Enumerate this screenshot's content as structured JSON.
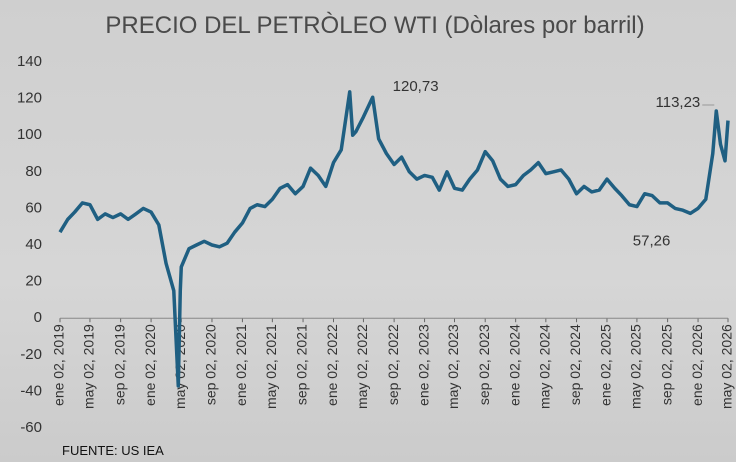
{
  "chart_data": {
    "type": "line",
    "title": "PRECIO  DEL PETRÒLEO WTI (Dòlares por barril)",
    "source": "FUENTE: US IEA",
    "ylim": [
      -60,
      140
    ],
    "yticks": [
      -60,
      -40,
      -20,
      0,
      20,
      40,
      60,
      80,
      100,
      120,
      140
    ],
    "xlim": [
      "2019-01-02",
      "2026-05-02"
    ],
    "xticks": [
      {
        "value": "2019-01-02",
        "label": "ene 02, 2019"
      },
      {
        "value": "2019-05-02",
        "label": "may 02, 2019"
      },
      {
        "value": "2019-09-02",
        "label": "sep 02, 2019"
      },
      {
        "value": "2020-01-02",
        "label": "ene 02, 2020"
      },
      {
        "value": "2020-05-02",
        "label": "may 02, 2020"
      },
      {
        "value": "2020-09-02",
        "label": "sep 02, 2020"
      },
      {
        "value": "2021-01-02",
        "label": "ene 02, 2021"
      },
      {
        "value": "2021-05-02",
        "label": "may 02, 2021"
      },
      {
        "value": "2021-09-02",
        "label": "sep 02, 2021"
      },
      {
        "value": "2022-01-02",
        "label": "ene 02, 2022"
      },
      {
        "value": "2022-05-02",
        "label": "may 02, 2022"
      },
      {
        "value": "2022-09-02",
        "label": "sep 02, 2022"
      },
      {
        "value": "2023-01-02",
        "label": "ene 02, 2023"
      },
      {
        "value": "2023-05-02",
        "label": "may 02, 2023"
      },
      {
        "value": "2023-09-02",
        "label": "sep 02, 2023"
      },
      {
        "value": "2024-01-02",
        "label": "ene 02, 2024"
      },
      {
        "value": "2024-05-02",
        "label": "may 02, 2024"
      },
      {
        "value": "2024-09-02",
        "label": "sep 02, 2024"
      },
      {
        "value": "2025-01-02",
        "label": "ene 02, 2025"
      },
      {
        "value": "2025-05-02",
        "label": "may 02, 2025"
      },
      {
        "value": "2025-09-02",
        "label": "sep 02, 2025"
      },
      {
        "value": "2026-01-02",
        "label": "ene 02, 2026"
      },
      {
        "value": "2026-05-02",
        "label": "may 02, 2026"
      }
    ],
    "x": [
      "2019-01-02",
      "2019-02-02",
      "2019-03-02",
      "2019-04-02",
      "2019-05-02",
      "2019-06-02",
      "2019-07-02",
      "2019-08-02",
      "2019-09-02",
      "2019-10-02",
      "2019-11-02",
      "2019-12-02",
      "2020-01-02",
      "2020-02-02",
      "2020-03-02",
      "2020-04-02",
      "2020-04-20",
      "2020-04-28",
      "2020-05-02",
      "2020-06-02",
      "2020-07-02",
      "2020-08-02",
      "2020-09-02",
      "2020-10-02",
      "2020-11-02",
      "2020-12-02",
      "2021-01-02",
      "2021-02-02",
      "2021-03-02",
      "2021-04-02",
      "2021-05-02",
      "2021-06-02",
      "2021-07-02",
      "2021-08-02",
      "2021-09-02",
      "2021-10-02",
      "2021-11-02",
      "2021-12-02",
      "2022-01-02",
      "2022-02-02",
      "2022-03-08",
      "2022-03-20",
      "2022-04-02",
      "2022-05-02",
      "2022-06-08",
      "2022-07-02",
      "2022-08-02",
      "2022-09-02",
      "2022-10-02",
      "2022-11-02",
      "2022-12-02",
      "2023-01-02",
      "2023-02-02",
      "2023-03-02",
      "2023-04-02",
      "2023-05-02",
      "2023-06-02",
      "2023-07-02",
      "2023-08-02",
      "2023-09-02",
      "2023-10-02",
      "2023-11-02",
      "2023-12-02",
      "2024-01-02",
      "2024-02-02",
      "2024-03-02",
      "2024-04-02",
      "2024-05-02",
      "2024-06-02",
      "2024-07-02",
      "2024-08-02",
      "2024-09-02",
      "2024-10-02",
      "2024-11-02",
      "2024-12-02",
      "2025-01-02",
      "2025-02-02",
      "2025-03-02",
      "2025-04-02",
      "2025-05-02",
      "2025-06-02",
      "2025-07-02",
      "2025-08-02",
      "2025-09-02",
      "2025-10-02",
      "2025-11-02",
      "2025-12-02",
      "2026-01-02",
      "2026-02-02",
      "2026-03-02",
      "2026-03-16",
      "2026-04-02",
      "2026-04-20",
      "2026-05-02"
    ],
    "series": [
      {
        "name": "WTI",
        "color": "#1f5f82",
        "values": [
          47,
          54,
          58,
          63,
          62,
          54,
          57,
          55,
          57,
          54,
          57,
          60,
          58,
          51,
          30,
          15,
          -37,
          15,
          28,
          38,
          40,
          42,
          40,
          39,
          41,
          47,
          52,
          60,
          62,
          61,
          65,
          71,
          73,
          68,
          72,
          82,
          78,
          72,
          85,
          92,
          123.7,
          100,
          102,
          110,
          120.73,
          98,
          90,
          84,
          88,
          80,
          76,
          78,
          77,
          70,
          80,
          71,
          70,
          76,
          81,
          91,
          86,
          76,
          72,
          73,
          78,
          81,
          85,
          79,
          80,
          81,
          76,
          68,
          72,
          69,
          70,
          76,
          71,
          67,
          62,
          61,
          68,
          67,
          63,
          63,
          60,
          59,
          57.26,
          60,
          65,
          90,
          113.23,
          95,
          86,
          108
        ]
      }
    ],
    "annotations": [
      {
        "text": "120,73",
        "x": "2022-06-08",
        "y": 120.73
      },
      {
        "text": "113,23",
        "x": "2026-03-16",
        "y": 113.23
      },
      {
        "text": "57,26",
        "x": "2025-12-02",
        "y": 57.26
      }
    ]
  }
}
